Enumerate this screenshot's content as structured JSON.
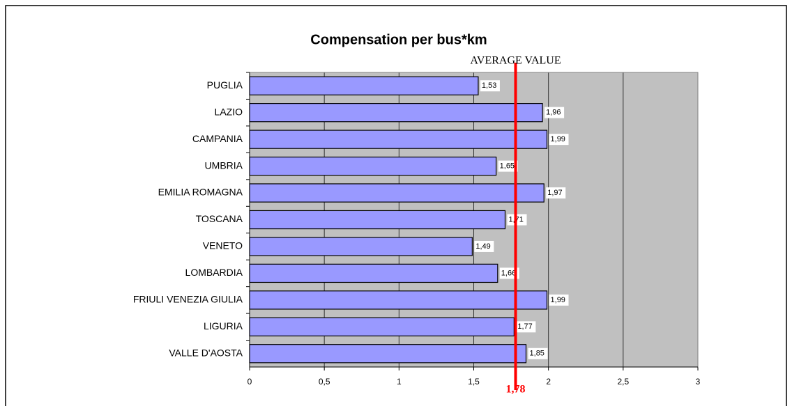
{
  "chart_data": {
    "type": "bar",
    "orientation": "horizontal",
    "title": "Compensation per bus*km",
    "categories": [
      "PUGLIA",
      "LAZIO",
      "CAMPANIA",
      "UMBRIA",
      "EMILIA ROMAGNA",
      "TOSCANA",
      "VENETO",
      "LOMBARDIA",
      "FRIULI VENEZIA GIULIA",
      "LIGURIA",
      "VALLE D'AOSTA"
    ],
    "values": [
      1.53,
      1.96,
      1.99,
      1.65,
      1.97,
      1.71,
      1.49,
      1.66,
      1.99,
      1.77,
      1.85
    ],
    "value_labels": [
      "1,53",
      "1,96",
      "1,99",
      "1,65",
      "1,97",
      "1,71",
      "1,49",
      "1,66",
      "1,99",
      "1,77",
      "1,85"
    ],
    "color": "#9999ff",
    "xlim": [
      0,
      3
    ],
    "xticks": [
      0,
      {
        "value": 0.5,
        "label": "0,5"
      },
      1,
      {
        "value": 1.5,
        "label": "1,5"
      },
      2,
      {
        "value": 2.5,
        "label": "2,5"
      },
      3
    ],
    "grid": true,
    "average": {
      "label": "AVERAGE VALUE",
      "value": 1.78,
      "value_label": "1,78",
      "color": "#ff0000"
    }
  }
}
